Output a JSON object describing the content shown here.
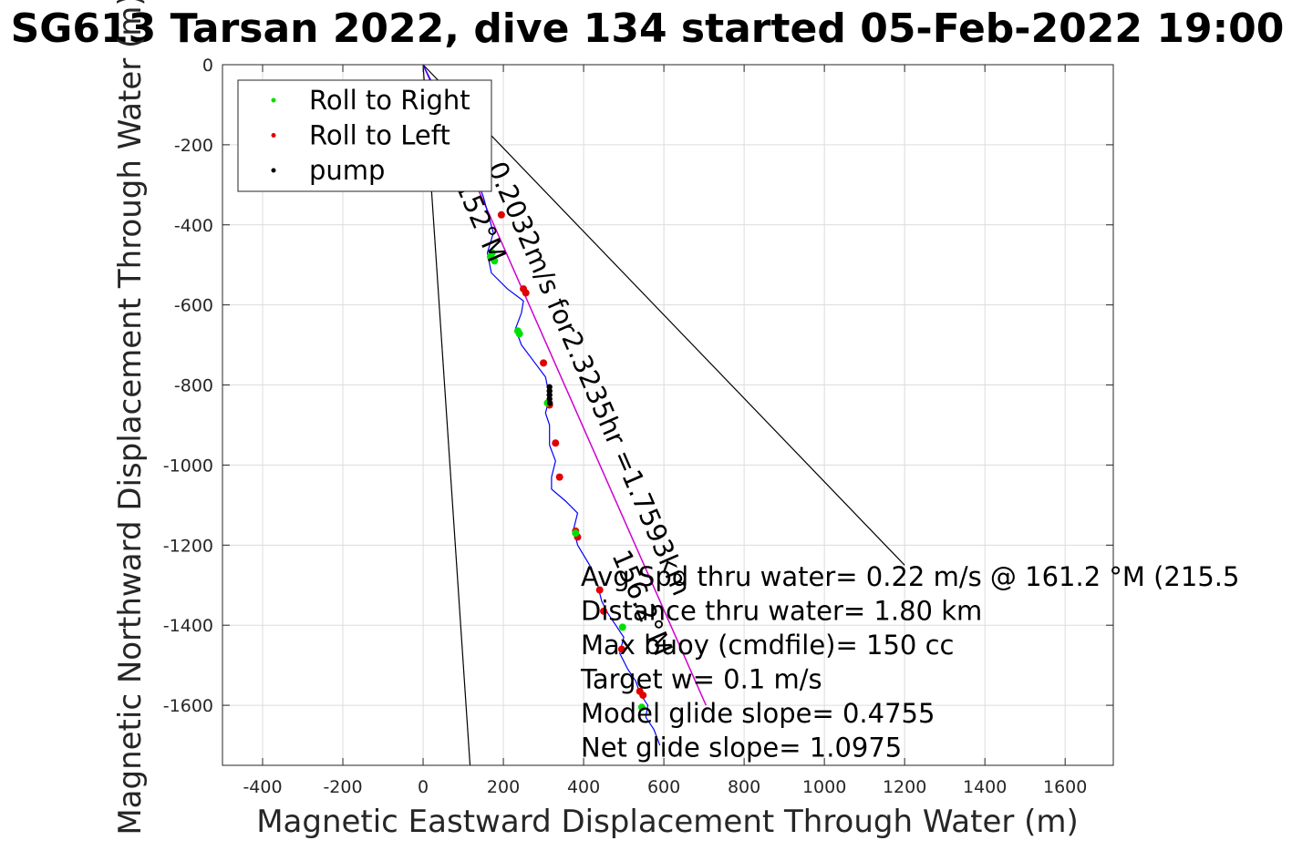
{
  "chart_data": {
    "type": "line",
    "title": "SG613 Tarsan 2022, dive 134 started 05-Feb-2022 19:00",
    "xlabel": "Magnetic Eastward Displacement Through Water (m)",
    "ylabel": "Magnetic Northward Displacement Through Water (m)",
    "xlim": [
      -500,
      1720
    ],
    "ylim": [
      -1750,
      0
    ],
    "xticks": [
      -400,
      -200,
      0,
      200,
      400,
      600,
      800,
      1000,
      1200,
      1400,
      1600
    ],
    "yticks": [
      0,
      -200,
      -400,
      -600,
      -800,
      -1000,
      -1200,
      -1400,
      -1600
    ],
    "grid": true,
    "legend_position": "top-left",
    "legend": [
      {
        "label": "Roll to Right",
        "color": "#00e000"
      },
      {
        "label": "Roll to Left",
        "color": "#e00000"
      },
      {
        "label": "pump",
        "color": "#000000"
      }
    ],
    "track": {
      "color": "#0000ff",
      "x": [
        0,
        20,
        60,
        110,
        150,
        175,
        160,
        170,
        210,
        250,
        245,
        230,
        245,
        275,
        305,
        315,
        305,
        315,
        315,
        330,
        320,
        320,
        355,
        385,
        375,
        385,
        415,
        435,
        445,
        460,
        480,
        500,
        490,
        510,
        530,
        540,
        560,
        555,
        575,
        590
      ],
      "y": [
        0,
        -40,
        -120,
        -220,
        -330,
        -420,
        -470,
        -520,
        -560,
        -590,
        -620,
        -660,
        -700,
        -740,
        -780,
        -830,
        -870,
        -900,
        -950,
        -990,
        -1030,
        -1060,
        -1090,
        -1120,
        -1160,
        -1200,
        -1250,
        -1300,
        -1340,
        -1370,
        -1400,
        -1430,
        -1470,
        -1510,
        -1540,
        -1570,
        -1600,
        -1630,
        -1660,
        -1700
      ]
    },
    "roll_right": {
      "x": [
        172,
        168,
        178,
        236,
        240,
        310,
        380,
        497,
        545
      ],
      "y": [
        -470,
        -480,
        -490,
        -665,
        -672,
        -845,
        -1170,
        -1405,
        -1605
      ]
    },
    "roll_left": {
      "x": [
        195,
        250,
        256,
        300,
        315,
        330,
        340,
        380,
        385,
        440,
        450,
        495,
        540,
        548
      ],
      "y": [
        -375,
        -560,
        -570,
        -745,
        -850,
        -945,
        -1030,
        -1165,
        -1180,
        -1312,
        -1365,
        -1460,
        -1565,
        -1575
      ]
    },
    "pump": {
      "x": [
        315,
        315,
        315,
        315,
        316
      ],
      "y": [
        -805,
        -815,
        -825,
        -835,
        -845
      ]
    },
    "model_line": {
      "color": "#d000d0",
      "x": [
        0,
        705
      ],
      "y": [
        0,
        -1600
      ]
    },
    "heading_lines": [
      {
        "x": [
          0,
          117
        ],
        "y": [
          0,
          -1750
        ]
      },
      {
        "x": [
          0,
          1200
        ],
        "y": [
          0,
          -1250
        ]
      }
    ],
    "rotated_labels": [
      {
        "text": "0.2032m/s for2.3235hr =1.7593km",
        "anchor": [
          160,
          -255
        ],
        "angle": 66.5
      },
      {
        "text": "152°M",
        "anchor": [
          80,
          -300
        ],
        "angle": 66.5
      },
      {
        "text": "156.2°M",
        "anchor": [
          470,
          -1225
        ],
        "angle": 66.5
      }
    ],
    "annotations": [
      "Avg Spd thru water=  0.22 m/s @ 161.2 °M (215.5",
      "Distance thru water=  1.80 km",
      "Max buoy (cmdfile)= 150 cc",
      "Target w= 0.1 m/s",
      "Model glide slope= 0.4755",
      "Net glide slope= 1.0975"
    ]
  }
}
